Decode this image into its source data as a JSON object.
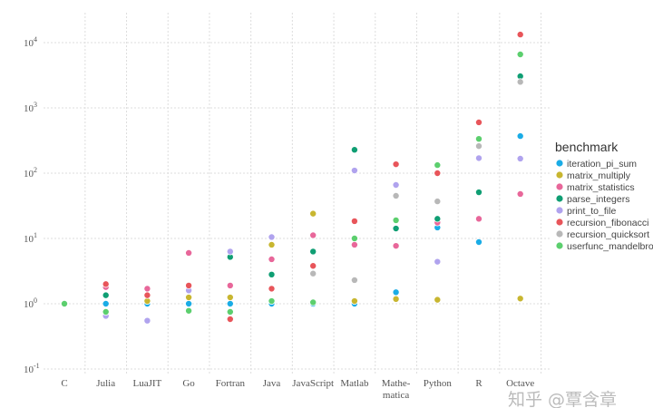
{
  "chart_data": {
    "type": "scatter",
    "title": "",
    "xlabel": "",
    "ylabel": "",
    "yscale": "log",
    "ylim": [
      0.1,
      20000
    ],
    "grid": true,
    "legend_position": "right",
    "legend_title": "benchmark",
    "categories": [
      "C",
      "Julia",
      "LuaJIT",
      "Go",
      "Fortran",
      "Java",
      "JavaScript",
      "Matlab",
      "Mathe-\nmatica",
      "Python",
      "R",
      "Octave"
    ],
    "y_ticks": [
      {
        "exp": -1,
        "label": "10",
        "sup": "-1"
      },
      {
        "exp": 0,
        "label": "10",
        "sup": "0"
      },
      {
        "exp": 1,
        "label": "10",
        "sup": "1"
      },
      {
        "exp": 2,
        "label": "10",
        "sup": "2"
      },
      {
        "exp": 3,
        "label": "10",
        "sup": "3"
      },
      {
        "exp": 4,
        "label": "10",
        "sup": "4"
      }
    ],
    "series": [
      {
        "name": "iteration_pi_sum",
        "color": "#1aace6",
        "values": [
          1,
          1,
          1,
          1,
          1,
          1,
          1,
          1,
          1.5,
          14.7,
          8.8,
          370
        ]
      },
      {
        "name": "matrix_multiply",
        "color": "#c8b630",
        "values": [
          1,
          null,
          1.1,
          1.25,
          1.25,
          8,
          24,
          1.1,
          1.18,
          1.15,
          null,
          1.2
        ]
      },
      {
        "name": "matrix_statistics",
        "color": "#e8679a",
        "values": [
          1,
          1.8,
          1.7,
          6,
          1.9,
          4.8,
          11.2,
          8,
          7.7,
          17.5,
          20,
          48
        ]
      },
      {
        "name": "parse_integers",
        "color": "#0f9e73",
        "values": [
          1,
          1.35,
          null,
          null,
          5.2,
          2.8,
          6.3,
          228,
          14.2,
          20,
          51,
          3050
        ]
      },
      {
        "name": "print_to_file",
        "color": "#b0a3ee",
        "values": [
          1,
          0.65,
          0.55,
          1.6,
          6.3,
          10.5,
          null,
          110,
          66,
          4.4,
          170,
          167
        ]
      },
      {
        "name": "recursion_fibonacci",
        "color": "#e8555a",
        "values": [
          1,
          2.0,
          1.35,
          1.9,
          0.58,
          1.7,
          3.8,
          18.4,
          137,
          100,
          600,
          13300
        ]
      },
      {
        "name": "recursion_quicksort",
        "color": "#b8b8b8",
        "values": [
          1,
          null,
          null,
          null,
          null,
          null,
          2.9,
          2.3,
          45,
          37,
          260,
          2500
        ]
      },
      {
        "name": "userfunc_mandelbrot",
        "color": "#5ccf6e",
        "values": [
          1,
          0.75,
          null,
          0.78,
          0.75,
          1.1,
          1.05,
          10,
          19,
          133,
          335,
          6600
        ]
      }
    ]
  },
  "watermark": "知乎 @覃含章"
}
